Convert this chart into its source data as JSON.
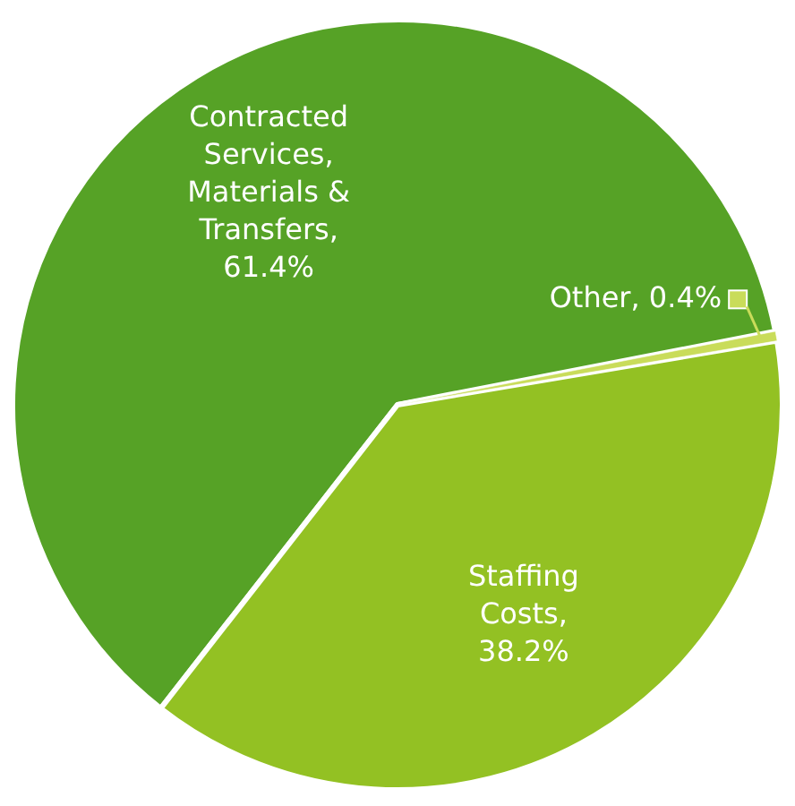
{
  "chart_data": {
    "type": "pie",
    "categories": [
      "Contracted Services, Materials & Transfers",
      "Other",
      "Staffing Costs"
    ],
    "values": [
      61.4,
      0.4,
      38.2
    ],
    "value_labels": [
      ", 61.4%",
      ", 0.4%",
      ", 38.2%"
    ],
    "colors": [
      "#56a226",
      "#c9dc5a",
      "#93c123"
    ]
  }
}
